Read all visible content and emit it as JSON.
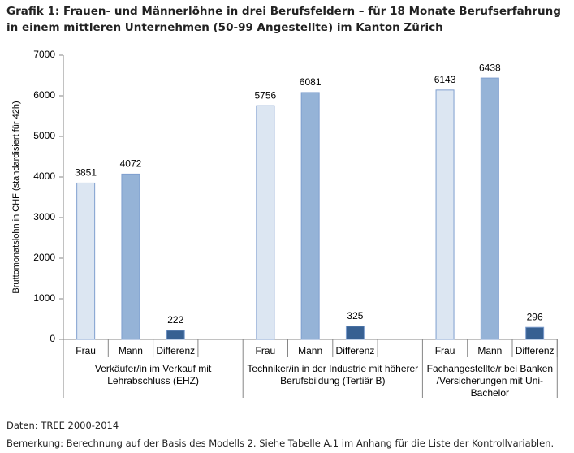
{
  "chart_data": {
    "type": "bar",
    "title": "Grafik 1: Frauen- und Männerlöhne in drei Berufsfeldern – für 18 Monate Berufserfahrung in einem mittleren Unternehmen (50-99 Angestellte) im Kanton Zürich",
    "ylabel": "Bruttomonatslohn in CHF (standardisiert für 42h)",
    "categories": [
      "Frau",
      "Mann",
      "Differenz",
      "Frau",
      "Mann",
      "Differenz",
      "Frau",
      "Mann",
      "Differenz"
    ],
    "groups": [
      [
        "Verkäufer/in im Verkauf mit",
        "Lehrabschluss (EHZ)"
      ],
      [
        "Techniker/in in der Industrie mit höherer",
        "Berufsbildung (Tertiär B)"
      ],
      [
        "Fachangestellte/r bei Banken",
        "/Versicherungen mit Uni-",
        "Bachelor"
      ]
    ],
    "values": [
      3851,
      4072,
      222,
      5756,
      6081,
      325,
      6143,
      6438,
      296
    ],
    "colors": [
      "#dce6f2",
      "#95b3d7",
      "#376092",
      "#dce6f2",
      "#95b3d7",
      "#376092",
      "#dce6f2",
      "#95b3d7",
      "#376092"
    ],
    "ylim": [
      0,
      7000
    ],
    "yticks": [
      0,
      1000,
      2000,
      3000,
      4000,
      5000,
      6000,
      7000
    ],
    "source": "Daten: TREE 2000-2014",
    "note": "Bemerkung: Berechnung auf der Basis des Modells 2. Siehe Tabelle A.1 im Anhang für die Liste der Kontrollvariablen."
  }
}
